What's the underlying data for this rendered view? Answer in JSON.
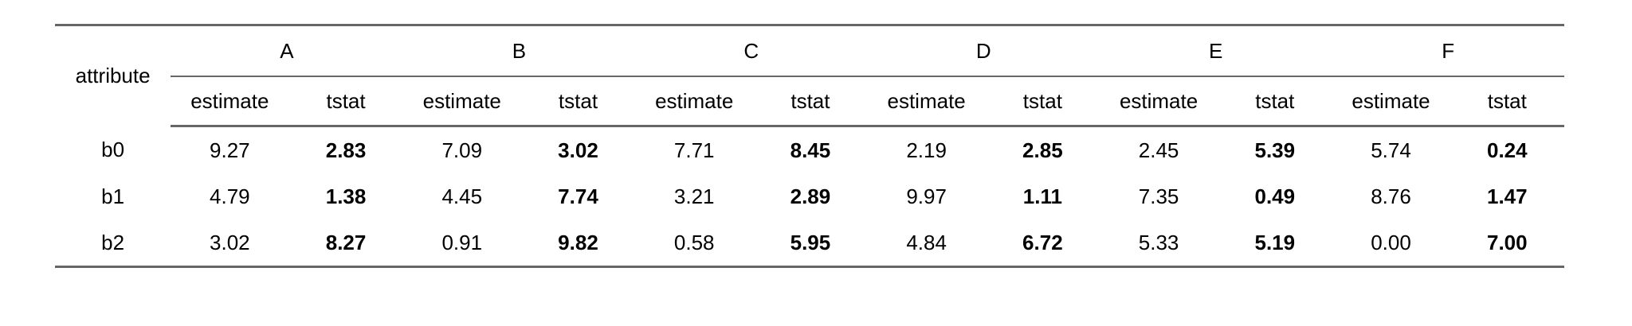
{
  "table": {
    "row_header": "attribute",
    "groups": [
      {
        "name": "A",
        "cols": [
          "estimate",
          "tstat"
        ]
      },
      {
        "name": "B",
        "cols": [
          "estimate",
          "tstat"
        ]
      },
      {
        "name": "C",
        "cols": [
          "estimate",
          "tstat"
        ]
      },
      {
        "name": "D",
        "cols": [
          "estimate",
          "tstat"
        ]
      },
      {
        "name": "E",
        "cols": [
          "estimate",
          "tstat"
        ]
      },
      {
        "name": "F",
        "cols": [
          "estimate",
          "tstat"
        ]
      }
    ],
    "rows": [
      {
        "label": "b0",
        "cells": [
          "9.27",
          "2.83",
          "7.09",
          "3.02",
          "7.71",
          "8.45",
          "2.19",
          "2.85",
          "2.45",
          "5.39",
          "5.74",
          "0.24"
        ]
      },
      {
        "label": "b1",
        "cells": [
          "4.79",
          "1.38",
          "4.45",
          "7.74",
          "3.21",
          "2.89",
          "9.97",
          "1.11",
          "7.35",
          "0.49",
          "8.76",
          "1.47"
        ]
      },
      {
        "label": "b2",
        "cells": [
          "3.02",
          "8.27",
          "0.91",
          "9.82",
          "0.58",
          "5.95",
          "4.84",
          "6.72",
          "5.33",
          "5.19",
          "0.00",
          "7.00"
        ]
      }
    ]
  }
}
